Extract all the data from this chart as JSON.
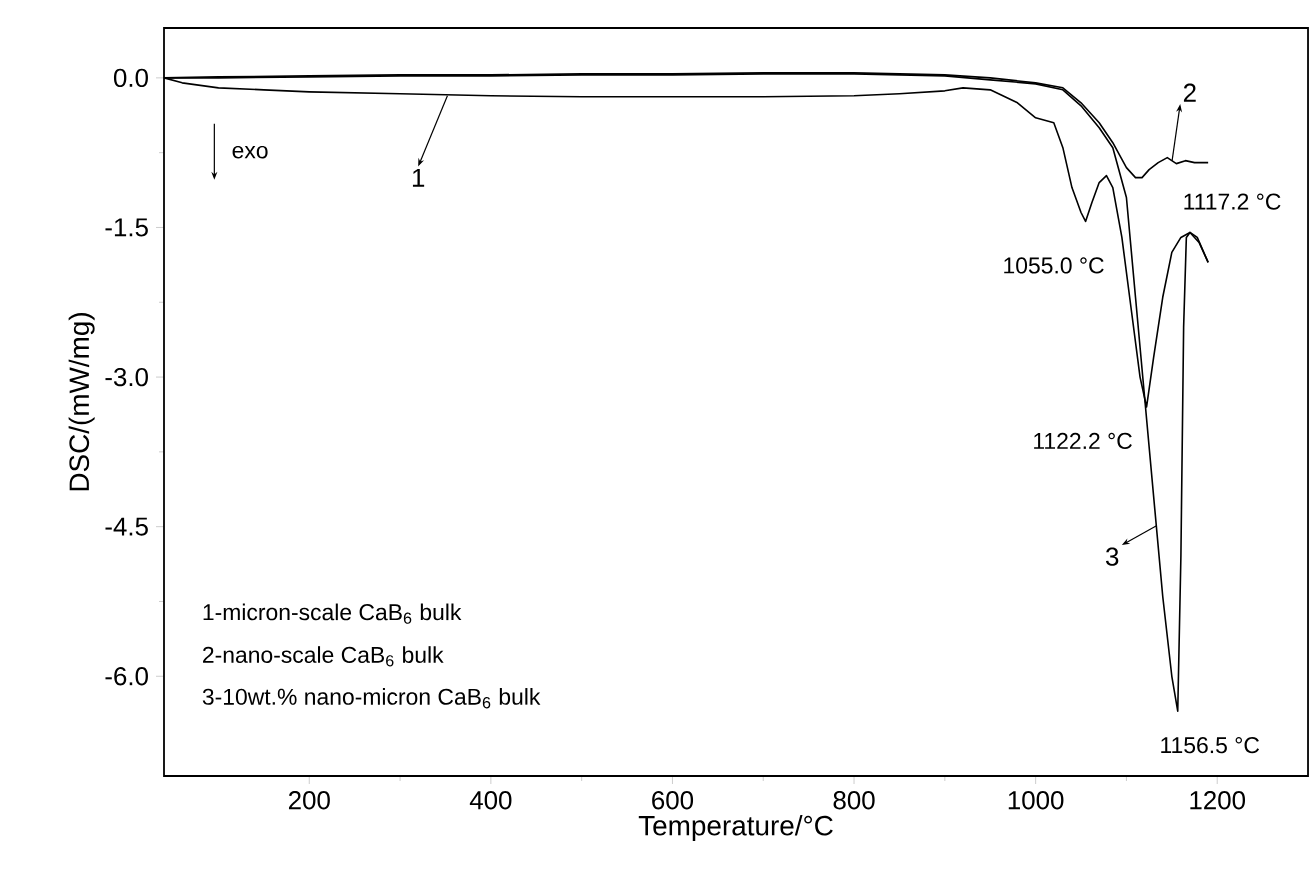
{
  "chart_data": {
    "type": "line",
    "xlabel": "Temperature/°C",
    "ylabel": "DSC/(mW/mg)",
    "xlim": [
      40,
      1300
    ],
    "ylim": [
      -7,
      0.5
    ],
    "xticks": [
      200,
      400,
      600,
      800,
      1000,
      1200
    ],
    "yticks": [
      {
        "value": 0,
        "label": "0.0"
      },
      {
        "value": -1.5,
        "label": "-1.5"
      },
      {
        "value": -3,
        "label": "-3.0"
      },
      {
        "value": -4.5,
        "label": "-4.5"
      },
      {
        "value": -6,
        "label": "-6.0"
      }
    ],
    "line_style": "solid",
    "marker": "none",
    "series": [
      {
        "color": "#000000",
        "x": [
          40,
          60,
          100,
          150,
          200,
          300,
          400,
          500,
          600,
          700,
          800,
          850,
          900,
          920,
          950,
          980,
          1000,
          1020,
          1030,
          1040,
          1050,
          1055,
          1062,
          1070,
          1078,
          1085,
          1095,
          1105,
          1115,
          1122.2,
          1130,
          1140,
          1150,
          1160,
          1170,
          1180,
          1190
        ],
        "values": [
          0,
          -0.05,
          -0.1,
          -0.12,
          -0.14,
          -0.16,
          -0.18,
          -0.19,
          -0.19,
          -0.19,
          -0.18,
          -0.16,
          -0.13,
          -0.1,
          -0.12,
          -0.25,
          -0.4,
          -0.45,
          -0.7,
          -1.1,
          -1.35,
          -1.44,
          -1.25,
          -1.05,
          -0.98,
          -1.1,
          -1.6,
          -2.3,
          -3.0,
          -3.3,
          -2.8,
          -2.2,
          -1.75,
          -1.6,
          -1.55,
          -1.65,
          -1.85
        ]
      },
      {
        "color": "#000000",
        "x": [
          40,
          100,
          200,
          300,
          400,
          500,
          600,
          700,
          800,
          900,
          950,
          1000,
          1030,
          1050,
          1070,
          1085,
          1100,
          1110,
          1117.2,
          1125,
          1135,
          1145,
          1155,
          1165,
          1175,
          1190
        ],
        "values": [
          0,
          0.01,
          0.02,
          0.03,
          0.03,
          0.04,
          0.04,
          0.05,
          0.05,
          0.03,
          0.0,
          -0.05,
          -0.1,
          -0.25,
          -0.45,
          -0.65,
          -0.9,
          -1.0,
          -1.0,
          -0.92,
          -0.85,
          -0.8,
          -0.86,
          -0.83,
          -0.85,
          -0.85
        ]
      },
      {
        "color": "#000000",
        "x": [
          40,
          100,
          200,
          300,
          400,
          500,
          600,
          700,
          800,
          900,
          950,
          1000,
          1030,
          1050,
          1070,
          1085,
          1100,
          1110,
          1120,
          1130,
          1140,
          1150,
          1156.5,
          1160,
          1163,
          1166,
          1170,
          1178,
          1190
        ],
        "values": [
          0,
          0,
          0.01,
          0.02,
          0.02,
          0.03,
          0.03,
          0.04,
          0.04,
          0.02,
          -0.02,
          -0.06,
          -0.12,
          -0.28,
          -0.5,
          -0.7,
          -1.2,
          -2.2,
          -3.2,
          -4.2,
          -5.2,
          -6.0,
          -6.35,
          -4.8,
          -2.5,
          -1.6,
          -1.55,
          -1.6,
          -1.85
        ]
      }
    ],
    "annotations": [
      "exo",
      {
        "text": "1",
        "x": 353,
        "y": -0.16
      },
      {
        "text": "2",
        "x": 1150,
        "y": -0.85
      },
      {
        "text": "3",
        "x": 1135,
        "y": -4.48
      },
      {
        "text": "1055.0 °C",
        "x": 1055,
        "y": -1.44
      },
      {
        "text": "1117.2 °C",
        "x": 1117.2,
        "y": -1.0
      },
      {
        "text": "1122.2 °C",
        "x": 1122.2,
        "y": -3.3
      },
      {
        "text": "1156.5 °C",
        "x": 1156.5,
        "y": -6.35
      },
      "1-micron-scale CaB$_{6}$ bulk",
      "2-nano-scale CaB$_{6}$ bulk",
      "3-10wt.% nano-micron CaB$_{6}$ bulk"
    ]
  }
}
